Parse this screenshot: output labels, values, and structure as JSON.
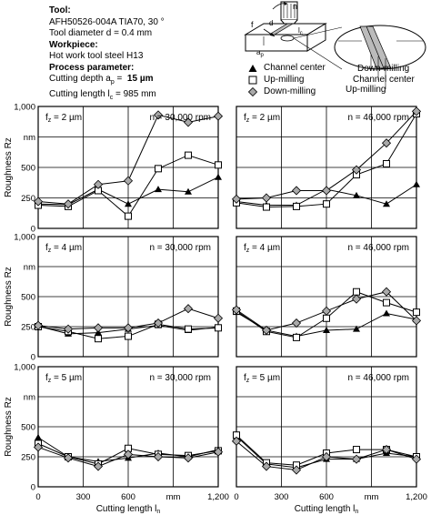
{
  "header": {
    "tool_heading": "Tool:",
    "tool_name": "AFH50526-004A TIA70, 30 °",
    "tool_diameter": "Tool diameter d = 0.4 mm",
    "workpiece_heading": "Workpiece:",
    "workpiece_material": "Hot work tool steel H13",
    "process_heading": "Process parameter:",
    "cutting_depth_label": "Cutting depth a",
    "cutting_depth_sub": "p",
    "cutting_depth_eq": " =",
    "cutting_depth_value": "15 µm",
    "cutting_length_label": "Cutting length l",
    "cutting_length_sub": "c",
    "cutting_length_value": "= 985 mm"
  },
  "diagram": {
    "n_label": "n",
    "f_label": "f",
    "d_label": "d",
    "lc_label": "l",
    "lc_sub": "c",
    "ap_label": "a",
    "ap_sub": "p",
    "labels": [
      "Down-milling",
      "Channel center",
      "Up-milling"
    ]
  },
  "legend": {
    "items": [
      {
        "label": "Channel center",
        "marker": "triangle"
      },
      {
        "label": "Up-milling",
        "marker": "square"
      },
      {
        "label": "Down-milling",
        "marker": "diamond"
      }
    ]
  },
  "axes": {
    "ylabel": "Roughness Rz",
    "xlabel_text": "Cutting length l",
    "xlabel_sub": "n",
    "y_ticks": [
      "0",
      "250",
      "500",
      "nm",
      "1,000"
    ],
    "x_ticks": [
      "0",
      "300",
      "600",
      "mm",
      "1,200"
    ]
  },
  "colors": {
    "diamond_fill": "#a9a9a9",
    "line": "#000000"
  },
  "chart_data": [
    {
      "type": "line",
      "fz_label": "f",
      "fz_sub": "z",
      "fz_value": " = 2 µm",
      "n_label": "n = 30,000 rpm",
      "x": [
        0,
        200,
        400,
        600,
        800,
        1000,
        1200
      ],
      "xlim": [
        0,
        1200
      ],
      "ylim": [
        0,
        1000
      ],
      "grid": true,
      "series": [
        {
          "name": "Channel center",
          "marker": "triangle",
          "values": [
            200,
            195,
            320,
            200,
            320,
            300,
            420
          ]
        },
        {
          "name": "Up-milling",
          "marker": "square",
          "values": [
            190,
            180,
            310,
            100,
            490,
            600,
            520
          ]
        },
        {
          "name": "Down-milling",
          "marker": "diamond",
          "values": [
            220,
            200,
            360,
            390,
            930,
            870,
            920
          ]
        }
      ]
    },
    {
      "type": "line",
      "fz_label": "f",
      "fz_sub": "z",
      "fz_value": " = 2 µm",
      "n_label": "n = 46,000 rpm",
      "x": [
        0,
        200,
        400,
        600,
        800,
        1000,
        1200
      ],
      "xlim": [
        0,
        1200
      ],
      "ylim": [
        0,
        1000
      ],
      "grid": true,
      "series": [
        {
          "name": "Channel center",
          "marker": "triangle",
          "values": [
            220,
            190,
            190,
            320,
            270,
            200,
            360
          ]
        },
        {
          "name": "Up-milling",
          "marker": "square",
          "values": [
            210,
            175,
            180,
            200,
            440,
            530,
            940
          ]
        },
        {
          "name": "Down-milling",
          "marker": "diamond",
          "values": [
            240,
            250,
            310,
            310,
            480,
            700,
            960
          ]
        }
      ]
    },
    {
      "type": "line",
      "fz_label": "f",
      "fz_sub": "z",
      "fz_value": " = 4 µm",
      "n_label": "n = 30,000 rpm",
      "x": [
        0,
        200,
        400,
        600,
        800,
        1000,
        1200
      ],
      "xlim": [
        0,
        1200
      ],
      "ylim": [
        0,
        1000
      ],
      "grid": true,
      "series": [
        {
          "name": "Channel center",
          "marker": "triangle",
          "values": [
            255,
            190,
            200,
            230,
            260,
            220,
            245
          ]
        },
        {
          "name": "Up-milling",
          "marker": "square",
          "values": [
            250,
            210,
            150,
            170,
            270,
            230,
            240
          ]
        },
        {
          "name": "Down-milling",
          "marker": "diamond",
          "values": [
            260,
            230,
            240,
            240,
            280,
            400,
            320
          ]
        }
      ]
    },
    {
      "type": "line",
      "fz_label": "f",
      "fz_sub": "z",
      "fz_value": " = 4 µm",
      "n_label": "n = 46,000 rpm",
      "x": [
        0,
        200,
        400,
        600,
        800,
        1000,
        1200
      ],
      "xlim": [
        0,
        1200
      ],
      "ylim": [
        0,
        1000
      ],
      "grid": true,
      "series": [
        {
          "name": "Channel center",
          "marker": "triangle",
          "values": [
            370,
            220,
            170,
            220,
            230,
            360,
            310
          ]
        },
        {
          "name": "Up-milling",
          "marker": "square",
          "values": [
            380,
            210,
            160,
            320,
            540,
            450,
            370
          ]
        },
        {
          "name": "Down-milling",
          "marker": "diamond",
          "values": [
            390,
            220,
            280,
            380,
            480,
            540,
            300
          ]
        }
      ]
    },
    {
      "type": "line",
      "fz_label": "f",
      "fz_sub": "z",
      "fz_value": " = 5 µm",
      "n_label": "n = 30,000 rpm",
      "x": [
        0,
        200,
        400,
        600,
        800,
        1000,
        1200
      ],
      "xlim": [
        0,
        1200
      ],
      "ylim": [
        0,
        1000
      ],
      "grid": true,
      "series": [
        {
          "name": "Channel center",
          "marker": "triangle",
          "values": [
            410,
            250,
            210,
            240,
            280,
            250,
            310
          ]
        },
        {
          "name": "Up-milling",
          "marker": "square",
          "values": [
            360,
            250,
            190,
            320,
            270,
            260,
            300
          ]
        },
        {
          "name": "Down-milling",
          "marker": "diamond",
          "values": [
            330,
            240,
            170,
            270,
            250,
            240,
            290
          ]
        }
      ]
    },
    {
      "type": "line",
      "fz_label": "f",
      "fz_sub": "z",
      "fz_value": " = 5 µm",
      "n_label": "n = 46,000 rpm",
      "x": [
        0,
        200,
        400,
        600,
        800,
        1000,
        1200
      ],
      "xlim": [
        0,
        1200
      ],
      "ylim": [
        0,
        1000
      ],
      "grid": true,
      "series": [
        {
          "name": "Channel center",
          "marker": "triangle",
          "values": [
            420,
            190,
            160,
            230,
            230,
            280,
            250
          ]
        },
        {
          "name": "Up-milling",
          "marker": "square",
          "values": [
            430,
            200,
            180,
            280,
            310,
            310,
            250
          ]
        },
        {
          "name": "Down-milling",
          "marker": "diamond",
          "values": [
            380,
            170,
            140,
            250,
            230,
            310,
            230
          ]
        }
      ]
    }
  ]
}
